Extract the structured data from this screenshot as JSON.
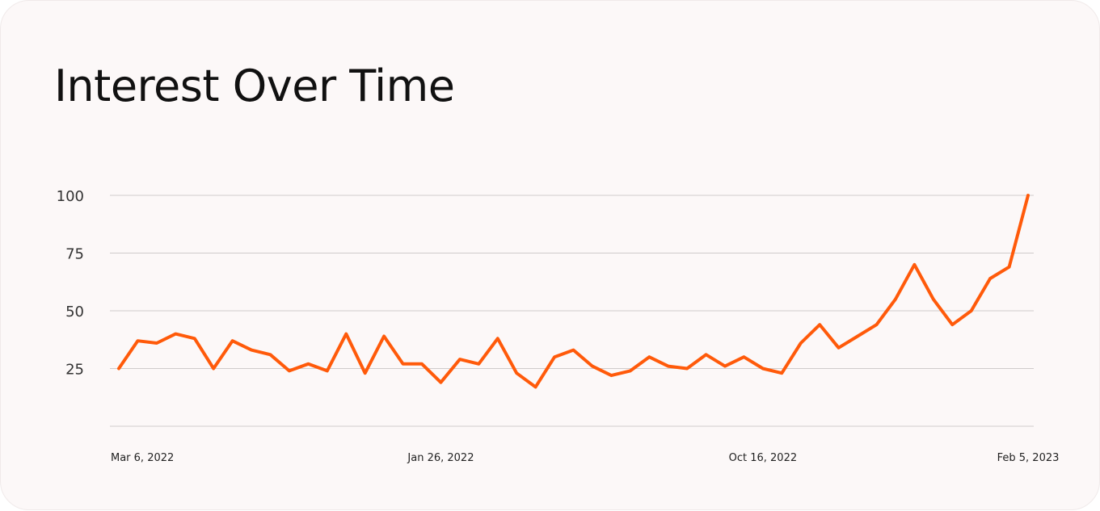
{
  "chart_data": {
    "type": "line",
    "title": "Interest Over Time",
    "xlabel": "",
    "ylabel": "",
    "ylim": [
      0,
      100
    ],
    "grid": true,
    "legend": "none",
    "y_ticks": [
      {
        "value": 100,
        "label": "100"
      },
      {
        "value": 75,
        "label": "75"
      },
      {
        "value": 50,
        "label": "50"
      },
      {
        "value": 25,
        "label": "25"
      },
      {
        "value": 0,
        "label": ""
      }
    ],
    "x_ticks": [
      {
        "index": 0,
        "label": "Mar 6, 2022"
      },
      {
        "index": 17,
        "label": "Jan 26, 2022"
      },
      {
        "index": 34,
        "label": "Oct 16, 2022"
      },
      {
        "index": 48,
        "label": "Feb 5, 2023"
      }
    ],
    "series": [
      {
        "color": "#ff5a0a",
        "values": [
          25,
          37,
          36,
          40,
          38,
          25,
          37,
          33,
          31,
          24,
          27,
          24,
          40,
          23,
          39,
          27,
          27,
          19,
          29,
          27,
          38,
          23,
          17,
          30,
          33,
          26,
          22,
          24,
          30,
          26,
          25,
          31,
          26,
          30,
          25,
          23,
          36,
          44,
          34,
          39,
          44,
          55,
          70,
          55,
          44,
          50,
          64,
          69,
          100
        ]
      }
    ]
  }
}
